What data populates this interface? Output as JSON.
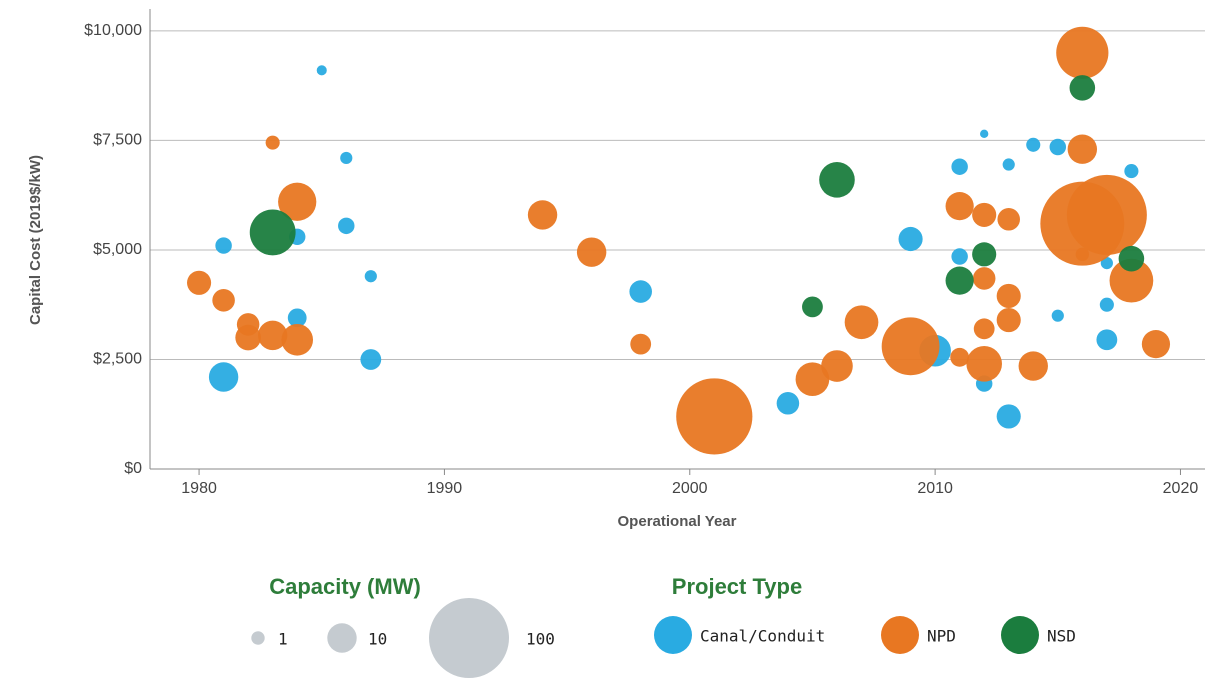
{
  "chart_data": {
    "type": "scatter",
    "x_label": "Operational Year",
    "y_label": "Capital Cost (2019$/kW)",
    "xlim": [
      1978,
      2021
    ],
    "xticks": [
      1980,
      1990,
      2000,
      2010,
      2020
    ],
    "ylim": [
      0,
      10500
    ],
    "yticks": [
      {
        "value": 0,
        "label": "$0"
      },
      {
        "value": 2500,
        "label": "$2,500"
      },
      {
        "value": 5000,
        "label": "$5,000"
      },
      {
        "value": 7500,
        "label": "$7,500"
      },
      {
        "value": 10000,
        "label": "$10,000"
      }
    ],
    "grid": true,
    "size_legend": {
      "title": "Capacity (MW)",
      "values": [
        1,
        10,
        100
      ],
      "color": "#c5cbd0"
    },
    "legend_title": "Project Type",
    "series": [
      {
        "name": "Canal/Conduit",
        "color": "#29abe2",
        "x": [
          1981,
          1981,
          1984,
          1984,
          1985,
          1986,
          1986,
          1987,
          1987,
          1998,
          2004,
          2009,
          2010,
          2011,
          2011,
          2012,
          2012,
          2013,
          2013,
          2014,
          2015,
          2015,
          2017,
          2017,
          2017,
          2018
        ],
        "values": [
          2100,
          5100,
          3450,
          5300,
          9100,
          7100,
          5550,
          4400,
          2500,
          4050,
          1500,
          5250,
          2700,
          6900,
          4850,
          7650,
          1950,
          6950,
          1200,
          7400,
          7350,
          3500,
          4700,
          3750,
          2950,
          6800
        ],
        "sizes": [
          10,
          2,
          3,
          2,
          0.3,
          0.7,
          2,
          0.7,
          4,
          5,
          5,
          6,
          12,
          2,
          2,
          0.1,
          2,
          0.7,
          6,
          1.2,
          2,
          0.7,
          0.7,
          1.2,
          4,
          1.2
        ]
      },
      {
        "name": "NPD",
        "color": "#e87722",
        "x": [
          1980,
          1981,
          1982,
          1982,
          1983,
          1983,
          1984,
          1984,
          1994,
          1996,
          1998,
          2001,
          2005,
          2006,
          2007,
          2009,
          2011,
          2011,
          2012,
          2012,
          2012,
          2012,
          2013,
          2013,
          2013,
          2014,
          2016,
          2016,
          2016,
          2016,
          2017,
          2018,
          2019
        ],
        "values": [
          4250,
          3850,
          3300,
          3000,
          7450,
          3050,
          6100,
          2950,
          5800,
          4950,
          2850,
          1200,
          2050,
          2350,
          3350,
          2800,
          6000,
          2550,
          5800,
          4350,
          3200,
          2400,
          5700,
          3950,
          3400,
          2350,
          9500,
          7300,
          5600,
          4900,
          5800,
          4300,
          2850
        ],
        "sizes": [
          6,
          5,
          5,
          7,
          1.2,
          10,
          19,
          12,
          10,
          10,
          4,
          90,
          14,
          12,
          14,
          49,
          9,
          3,
          6,
          5,
          4,
          16,
          5,
          6,
          6,
          10,
          39,
          10,
          111,
          1,
          100,
          26,
          9
        ]
      },
      {
        "name": "NSD",
        "color": "#1b7d3e",
        "x": [
          1983,
          2005,
          2006,
          2011,
          2012,
          2016,
          2018
        ],
        "values": [
          5400,
          3700,
          6600,
          4300,
          4900,
          8700,
          4800
        ],
        "sizes": [
          29,
          4,
          16,
          9,
          6,
          7,
          7
        ]
      }
    ]
  }
}
